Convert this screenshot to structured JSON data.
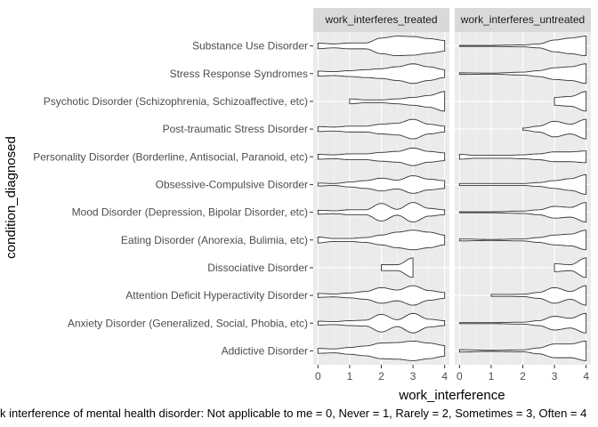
{
  "chart_data": {
    "type": "violin",
    "xlabel": "work_interference",
    "ylabel": "condition_diagnosed",
    "caption": "k interference of mental health disorder: Not applicable to me = 0, Never = 1, Rarely = 2, Sometimes = 3, Often = 4",
    "xlim": [
      0,
      4
    ],
    "x_ticks": [
      "0",
      "1",
      "2",
      "3",
      "4"
    ],
    "grid": true,
    "categories": [
      "Substance Use Disorder",
      "Stress Response Syndromes",
      "Psychotic Disorder (Schizophrenia, Schizoaffective, etc)",
      "Post-traumatic Stress Disorder",
      "Personality Disorder (Borderline, Antisocial, Paranoid, etc)",
      "Obsessive-Compulsive Disorder",
      "Mood Disorder (Depression, Bipolar Disorder, etc)",
      "Eating Disorder (Anorexia, Bulimia, etc)",
      "Dissociative Disorder",
      "Attention Deficit Hyperactivity Disorder",
      "Anxiety Disorder (Generalized, Social, Phobia, etc)",
      "Addictive Disorder"
    ],
    "panels": [
      {
        "name": "work_interferes_treated",
        "violins": [
          {
            "range": [
              0,
              4
            ],
            "density": [
              [
                0,
                0.28
              ],
              [
                0.5,
                0.2
              ],
              [
                1,
                0.3
              ],
              [
                1.5,
                0.3
              ],
              [
                2,
                0.8
              ],
              [
                2.5,
                1.0
              ],
              [
                3,
                0.95
              ],
              [
                3.5,
                0.75
              ],
              [
                4,
                0.55
              ]
            ]
          },
          {
            "range": [
              0,
              4
            ],
            "density": [
              [
                0,
                0.25
              ],
              [
                0.5,
                0.2
              ],
              [
                1,
                0.3
              ],
              [
                1.5,
                0.4
              ],
              [
                2,
                0.5
              ],
              [
                2.5,
                0.7
              ],
              [
                3,
                1.0
              ],
              [
                3.5,
                0.7
              ],
              [
                4,
                0.4
              ]
            ]
          },
          {
            "range": [
              1,
              4
            ],
            "density": [
              [
                1,
                0.25
              ],
              [
                1.5,
                0.15
              ],
              [
                2,
                0.15
              ],
              [
                2.5,
                0.25
              ],
              [
                3,
                0.4
              ],
              [
                3.5,
                0.6
              ],
              [
                4,
                1.0
              ]
            ]
          },
          {
            "range": [
              0,
              4
            ],
            "density": [
              [
                0,
                0.25
              ],
              [
                0.5,
                0.2
              ],
              [
                1,
                0.3
              ],
              [
                1.5,
                0.3
              ],
              [
                2,
                0.5
              ],
              [
                2.5,
                0.6
              ],
              [
                3,
                1.0
              ],
              [
                3.5,
                0.5
              ],
              [
                4,
                0.3
              ]
            ]
          },
          {
            "range": [
              0,
              4
            ],
            "density": [
              [
                0,
                0.25
              ],
              [
                0.5,
                0.2
              ],
              [
                1,
                0.3
              ],
              [
                1.5,
                0.3
              ],
              [
                2,
                0.45
              ],
              [
                2.5,
                0.55
              ],
              [
                3,
                0.9
              ],
              [
                3.5,
                0.55
              ],
              [
                4,
                0.4
              ]
            ]
          },
          {
            "range": [
              0,
              4
            ],
            "density": [
              [
                0,
                0.15
              ],
              [
                0.5,
                0.1
              ],
              [
                1,
                0.25
              ],
              [
                1.5,
                0.4
              ],
              [
                2,
                0.65
              ],
              [
                2.5,
                0.45
              ],
              [
                3,
                0.9
              ],
              [
                3.5,
                0.55
              ],
              [
                4,
                0.4
              ]
            ]
          },
          {
            "range": [
              0,
              4
            ],
            "density": [
              [
                0,
                0.2
              ],
              [
                0.5,
                0.15
              ],
              [
                1,
                0.25
              ],
              [
                1.5,
                0.25
              ],
              [
                2,
                0.9
              ],
              [
                2.5,
                0.3
              ],
              [
                3,
                1.0
              ],
              [
                3.5,
                0.4
              ],
              [
                4,
                0.25
              ]
            ]
          },
          {
            "range": [
              0,
              4
            ],
            "density": [
              [
                0,
                0.3
              ],
              [
                0.5,
                0.15
              ],
              [
                1,
                0.15
              ],
              [
                1.5,
                0.25
              ],
              [
                2,
                0.5
              ],
              [
                2.5,
                0.8
              ],
              [
                3,
                1.0
              ],
              [
                3.5,
                0.8
              ],
              [
                4,
                0.5
              ]
            ]
          },
          {
            "range": [
              2,
              3
            ],
            "density": [
              [
                2,
                0.3
              ],
              [
                2.5,
                0.3
              ],
              [
                3,
                1.0
              ]
            ]
          },
          {
            "range": [
              0,
              4
            ],
            "density": [
              [
                0,
                0.2
              ],
              [
                0.5,
                0.15
              ],
              [
                1,
                0.25
              ],
              [
                1.5,
                0.4
              ],
              [
                2,
                0.8
              ],
              [
                2.5,
                0.55
              ],
              [
                3,
                1.0
              ],
              [
                3.5,
                0.5
              ],
              [
                4,
                0.3
              ]
            ]
          },
          {
            "range": [
              0,
              4
            ],
            "density": [
              [
                0,
                0.2
              ],
              [
                0.5,
                0.15
              ],
              [
                1,
                0.25
              ],
              [
                1.5,
                0.3
              ],
              [
                2,
                0.9
              ],
              [
                2.5,
                0.35
              ],
              [
                3,
                1.0
              ],
              [
                3.5,
                0.4
              ],
              [
                4,
                0.25
              ]
            ]
          },
          {
            "range": [
              0,
              4
            ],
            "density": [
              [
                0,
                0.25
              ],
              [
                0.5,
                0.2
              ],
              [
                1,
                0.35
              ],
              [
                1.5,
                0.5
              ],
              [
                2,
                0.8
              ],
              [
                2.5,
                0.85
              ],
              [
                3,
                1.0
              ],
              [
                3.5,
                0.8
              ],
              [
                4,
                0.55
              ]
            ]
          }
        ]
      },
      {
        "name": "work_interferes_untreated",
        "violins": [
          {
            "range": [
              0,
              4
            ],
            "density": [
              [
                0,
                0.05
              ],
              [
                1,
                0.05
              ],
              [
                2,
                0.1
              ],
              [
                2.5,
                0.2
              ],
              [
                3,
                0.6
              ],
              [
                3.5,
                0.8
              ],
              [
                4,
                1.0
              ]
            ]
          },
          {
            "range": [
              0,
              4
            ],
            "density": [
              [
                0,
                0.08
              ],
              [
                1,
                0.05
              ],
              [
                2,
                0.15
              ],
              [
                2.5,
                0.3
              ],
              [
                3,
                0.6
              ],
              [
                3.5,
                0.7
              ],
              [
                4,
                1.0
              ]
            ]
          },
          {
            "range": [
              3,
              4
            ],
            "density": [
              [
                3,
                0.4
              ],
              [
                3.5,
                0.5
              ],
              [
                4,
                1.0
              ]
            ]
          },
          {
            "range": [
              2,
              4
            ],
            "density": [
              [
                2,
                0.1
              ],
              [
                2.5,
                0.3
              ],
              [
                3,
                0.8
              ],
              [
                3.5,
                0.5
              ],
              [
                4,
                1.0
              ]
            ]
          },
          {
            "range": [
              0,
              4
            ],
            "density": [
              [
                0,
                0.25
              ],
              [
                0.5,
                0.15
              ],
              [
                1,
                0.15
              ],
              [
                1.5,
                0.15
              ],
              [
                2,
                0.2
              ],
              [
                2.5,
                0.3
              ],
              [
                3,
                0.5
              ],
              [
                3.5,
                0.5
              ],
              [
                4,
                0.6
              ]
            ]
          },
          {
            "range": [
              0,
              4
            ],
            "density": [
              [
                0,
                0.1
              ],
              [
                1,
                0.1
              ],
              [
                2,
                0.1
              ],
              [
                2.5,
                0.2
              ],
              [
                3,
                0.4
              ],
              [
                3.5,
                0.6
              ],
              [
                4,
                1.0
              ]
            ]
          },
          {
            "range": [
              0,
              4
            ],
            "density": [
              [
                0,
                0.05
              ],
              [
                1,
                0.05
              ],
              [
                2,
                0.12
              ],
              [
                2.5,
                0.25
              ],
              [
                3,
                0.6
              ],
              [
                3.5,
                0.5
              ],
              [
                4,
                1.0
              ]
            ]
          },
          {
            "range": [
              0,
              4
            ],
            "density": [
              [
                0,
                0.1
              ],
              [
                1,
                0.05
              ],
              [
                2,
                0.1
              ],
              [
                2.5,
                0.25
              ],
              [
                3,
                0.5
              ],
              [
                3.5,
                0.6
              ],
              [
                4,
                1.0
              ]
            ]
          },
          {
            "range": [
              3,
              4
            ],
            "density": [
              [
                3,
                0.4
              ],
              [
                3.5,
                0.3
              ],
              [
                4,
                1.0
              ]
            ]
          },
          {
            "range": [
              1,
              4
            ],
            "density": [
              [
                1,
                0.1
              ],
              [
                1.5,
                0.1
              ],
              [
                2,
                0.12
              ],
              [
                2.5,
                0.3
              ],
              [
                3,
                0.8
              ],
              [
                3.5,
                0.4
              ],
              [
                4,
                1.0
              ]
            ]
          },
          {
            "range": [
              0,
              4
            ],
            "density": [
              [
                0,
                0.05
              ],
              [
                1,
                0.05
              ],
              [
                2,
                0.1
              ],
              [
                2.5,
                0.25
              ],
              [
                3,
                0.7
              ],
              [
                3.5,
                0.5
              ],
              [
                4,
                1.0
              ]
            ]
          },
          {
            "range": [
              0,
              4
            ],
            "density": [
              [
                0,
                0.12
              ],
              [
                1,
                0.05
              ],
              [
                2,
                0.1
              ],
              [
                2.5,
                0.3
              ],
              [
                3,
                0.7
              ],
              [
                3.5,
                0.7
              ],
              [
                4,
                1.0
              ]
            ]
          }
        ]
      }
    ]
  }
}
